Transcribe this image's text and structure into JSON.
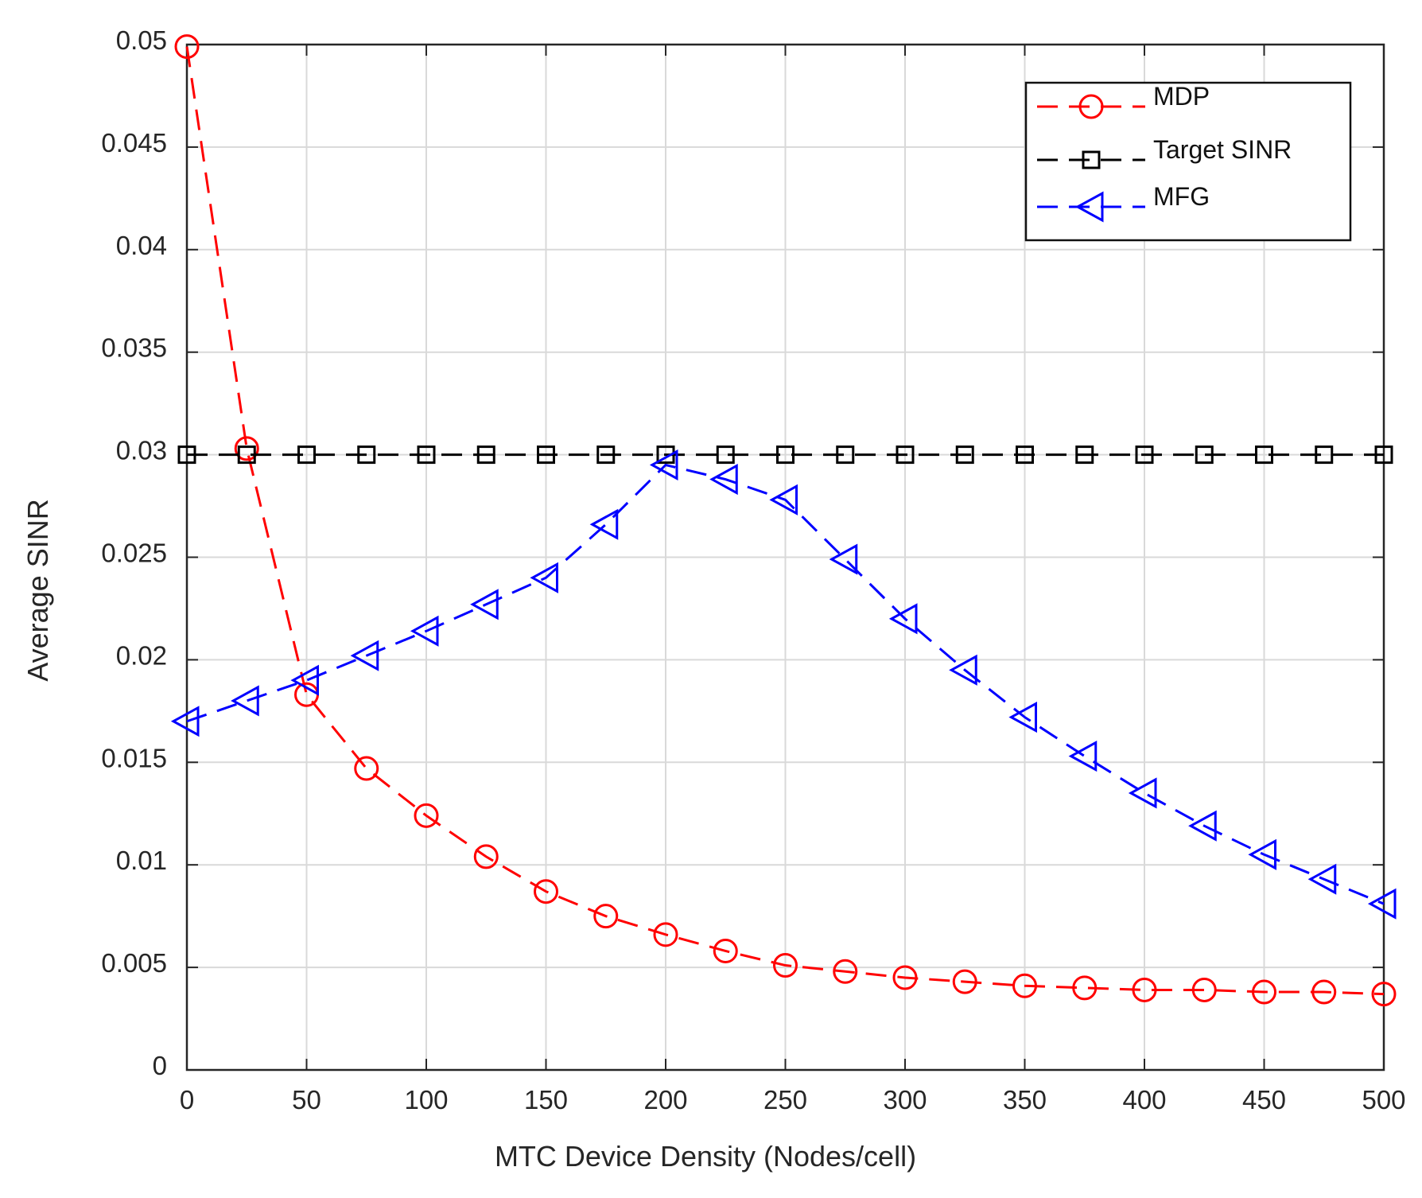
{
  "chart_data": {
    "type": "line",
    "title": "",
    "xlabel": "MTC Device Density (Nodes/cell)",
    "ylabel": "Average SINR",
    "xlim": [
      0,
      500
    ],
    "ylim": [
      0,
      0.05
    ],
    "grid": true,
    "xticks": [
      0,
      50,
      100,
      150,
      200,
      250,
      300,
      350,
      400,
      450,
      500
    ],
    "xtick_labels": [
      "0",
      "50",
      "100",
      "150",
      "200",
      "250",
      "300",
      "350",
      "400",
      "450",
      "500"
    ],
    "yticks": [
      0,
      0.005,
      0.01,
      0.015,
      0.02,
      0.025,
      0.03,
      0.035,
      0.04,
      0.045,
      0.05
    ],
    "ytick_labels": [
      "0",
      "0.005",
      "0.01",
      "0.015",
      "0.02",
      "0.025",
      "0.03",
      "0.035",
      "0.04",
      "0.045",
      "0.05"
    ],
    "legend_position": "top-right",
    "x": [
      0,
      25,
      50,
      75,
      100,
      125,
      150,
      175,
      200,
      225,
      250,
      275,
      300,
      325,
      350,
      375,
      400,
      425,
      450,
      475,
      500
    ],
    "series": [
      {
        "name": "MDP",
        "color": "#ff0000",
        "marker": "circle",
        "line_style": "dashed",
        "values": [
          0.0499,
          0.0303,
          0.0183,
          0.0147,
          0.0124,
          0.0104,
          0.0087,
          0.0075,
          0.0066,
          0.0058,
          0.0051,
          0.0048,
          0.0045,
          0.0043,
          0.0041,
          0.004,
          0.0039,
          0.0039,
          0.0038,
          0.0038,
          0.0037
        ]
      },
      {
        "name": "Target SINR",
        "color": "#000000",
        "marker": "square",
        "line_style": "dashed",
        "values": [
          0.03,
          0.03,
          0.03,
          0.03,
          0.03,
          0.03,
          0.03,
          0.03,
          0.03,
          0.03,
          0.03,
          0.03,
          0.03,
          0.03,
          0.03,
          0.03,
          0.03,
          0.03,
          0.03,
          0.03,
          0.03
        ]
      },
      {
        "name": "MFG",
        "color": "#0000ff",
        "marker": "triangle-left",
        "line_style": "dashed",
        "values": [
          0.017,
          0.018,
          0.019,
          0.0202,
          0.0214,
          0.0227,
          0.024,
          0.0266,
          0.0295,
          0.0288,
          0.0278,
          0.0249,
          0.022,
          0.0195,
          0.0172,
          0.0153,
          0.0135,
          0.0119,
          0.0105,
          0.0093,
          0.0081
        ]
      }
    ]
  }
}
